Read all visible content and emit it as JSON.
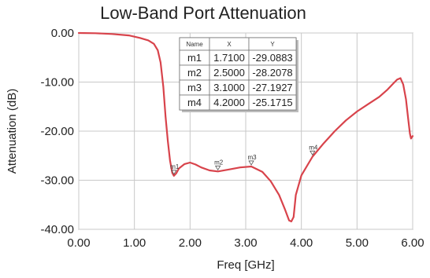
{
  "chart_data": {
    "type": "line",
    "title": "Low-Band Port Attenuation",
    "xlabel": "Freq [GHz]",
    "ylabel": "Attenuation (dB)",
    "xlim": [
      0,
      6
    ],
    "ylim": [
      -40,
      0
    ],
    "grid": true,
    "x_ticks": [
      0,
      1,
      2,
      3,
      4,
      5,
      6
    ],
    "x_tick_labels": [
      "0.00",
      "1.00",
      "2.00",
      "3.00",
      "4.00",
      "5.00",
      "6.00"
    ],
    "y_ticks": [
      0,
      -10,
      -20,
      -30,
      -40
    ],
    "y_tick_labels": [
      "0.00",
      "-10.00",
      "-20.00",
      "-30.00",
      "-40.00"
    ],
    "series": [
      {
        "color": "#d8434b",
        "x": [
          0.0,
          0.3,
          0.6,
          0.9,
          1.1,
          1.25,
          1.35,
          1.42,
          1.47,
          1.52,
          1.56,
          1.6,
          1.64,
          1.68,
          1.71,
          1.75,
          1.8,
          1.9,
          2.0,
          2.1,
          2.2,
          2.35,
          2.5,
          2.7,
          2.9,
          3.1,
          3.3,
          3.45,
          3.6,
          3.7,
          3.78,
          3.82,
          3.86,
          3.9,
          4.0,
          4.2,
          4.4,
          4.6,
          4.8,
          5.0,
          5.2,
          5.4,
          5.55,
          5.65,
          5.72,
          5.78,
          5.83,
          5.88,
          5.92,
          5.95,
          5.97,
          6.0
        ],
        "y": [
          0.0,
          -0.05,
          -0.2,
          -0.5,
          -1.0,
          -1.5,
          -2.2,
          -3.5,
          -6.0,
          -11.0,
          -17.0,
          -22.0,
          -26.0,
          -28.5,
          -29.1,
          -28.6,
          -27.6,
          -26.7,
          -26.4,
          -26.8,
          -27.4,
          -28.0,
          -28.2,
          -27.8,
          -27.4,
          -27.2,
          -28.3,
          -30.2,
          -33.0,
          -35.8,
          -38.2,
          -38.4,
          -37.5,
          -33.0,
          -29.0,
          -25.2,
          -22.5,
          -20.0,
          -17.8,
          -16.0,
          -14.5,
          -13.0,
          -11.5,
          -10.3,
          -9.5,
          -9.2,
          -10.5,
          -13.5,
          -17.5,
          -20.5,
          -21.5,
          -21.0
        ]
      }
    ],
    "markers": [
      {
        "name": "m1",
        "x": 1.71,
        "y": -29.0883
      },
      {
        "name": "m2",
        "x": 2.5,
        "y": -28.2078
      },
      {
        "name": "m3",
        "x": 3.1,
        "y": -27.1927
      },
      {
        "name": "m4",
        "x": 4.2,
        "y": -25.1715
      }
    ],
    "marker_table": {
      "headers": [
        "Name",
        "X",
        "Y"
      ],
      "rows": [
        [
          "m1",
          "1.7100",
          "-29.0883"
        ],
        [
          "m2",
          "2.5000",
          "-28.2078"
        ],
        [
          "m3",
          "3.1000",
          "-27.1927"
        ],
        [
          "m4",
          "4.2000",
          "-25.1715"
        ]
      ]
    }
  }
}
